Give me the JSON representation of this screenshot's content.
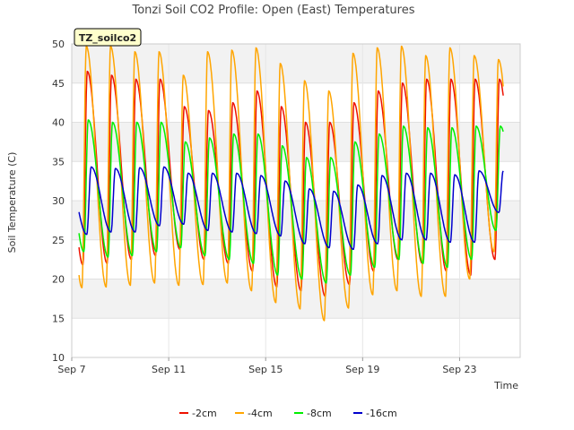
{
  "chart_data": {
    "type": "line",
    "title": "Tonzi Soil CO2 Profile: Open (East) Temperatures",
    "xlabel": "Time",
    "ylabel": "Soil Temperature (C)",
    "tag": "TZ_soilco2",
    "ylim": [
      10,
      50
    ],
    "yticks": [
      10,
      15,
      20,
      25,
      30,
      35,
      40,
      45,
      50
    ],
    "xlim": [
      7,
      25.5
    ],
    "xticks": [
      {
        "label": "Sep 7",
        "day": 7
      },
      {
        "label": "Sep 11",
        "day": 11
      },
      {
        "label": "Sep 15",
        "day": 15
      },
      {
        "label": "Sep 19",
        "day": 19
      },
      {
        "label": "Sep 23",
        "day": 23
      }
    ],
    "grid": true,
    "legend_position": "bottom",
    "x_start_day": 7.3,
    "x_end_day": 24.8,
    "series": [
      {
        "name": "-2cm",
        "color": "#ee1100",
        "daily_min": [
          21.8,
          22.0,
          22.5,
          23.0,
          23.8,
          22.5,
          22.0,
          21.0,
          19.0,
          18.5,
          17.8,
          19.3,
          21.0,
          22.5,
          22.0,
          21.0,
          20.5,
          22.5
        ],
        "daily_max": [
          46.5,
          46.0,
          45.5,
          45.5,
          42.0,
          41.5,
          42.5,
          44.0,
          42.0,
          40.0,
          40.0,
          42.5,
          44.0,
          45.0,
          45.5,
          45.5,
          45.5,
          45.5
        ]
      },
      {
        "name": "-4cm",
        "color": "#ffa500",
        "daily_min": [
          18.9,
          19.0,
          19.2,
          19.5,
          19.2,
          19.3,
          19.5,
          18.5,
          17.0,
          16.2,
          14.7,
          16.3,
          18.0,
          18.5,
          17.8,
          17.8,
          20.0,
          23.5
        ],
        "daily_max": [
          49.7,
          49.7,
          49.0,
          49.0,
          46.0,
          49.0,
          49.2,
          49.5,
          47.5,
          45.3,
          44.0,
          48.8,
          49.5,
          49.7,
          48.5,
          49.5,
          48.5,
          48.0
        ]
      },
      {
        "name": "-8cm",
        "color": "#00ee00",
        "daily_min": [
          23.5,
          22.8,
          23.0,
          23.5,
          24.0,
          23.0,
          22.5,
          22.0,
          20.5,
          20.0,
          19.5,
          20.5,
          21.5,
          22.5,
          22.0,
          21.5,
          22.5,
          26.2
        ],
        "daily_max": [
          40.3,
          40.0,
          40.0,
          40.0,
          37.5,
          38.0,
          38.5,
          38.5,
          37.0,
          35.5,
          35.5,
          37.5,
          38.5,
          39.5,
          39.3,
          39.3,
          39.5,
          39.5
        ]
      },
      {
        "name": "-16cm",
        "color": "#0000cc",
        "daily_min": [
          25.7,
          26.0,
          26.0,
          26.8,
          27.0,
          26.2,
          26.0,
          25.8,
          25.5,
          24.5,
          24.0,
          23.8,
          24.5,
          25.0,
          25.0,
          24.7,
          24.7,
          28.5
        ],
        "daily_max": [
          34.3,
          34.1,
          34.2,
          34.3,
          33.5,
          33.5,
          33.5,
          33.2,
          32.5,
          31.5,
          31.2,
          32.0,
          33.2,
          33.5,
          33.5,
          33.3,
          33.8,
          33.8
        ]
      }
    ]
  }
}
